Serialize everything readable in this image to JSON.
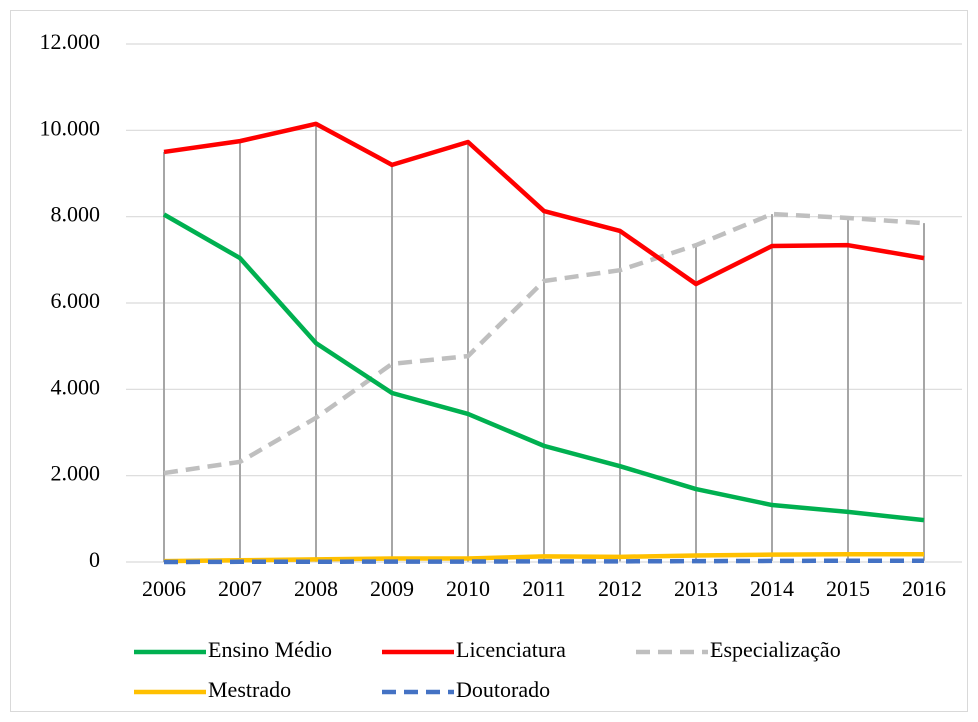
{
  "chart_data": {
    "type": "line",
    "categories": [
      "2006",
      "2007",
      "2008",
      "2009",
      "2010",
      "2011",
      "2012",
      "2013",
      "2014",
      "2015",
      "2016"
    ],
    "series": [
      {
        "name": "Ensino Médio",
        "color": "#00b050",
        "dash": false,
        "values": [
          8050,
          7040,
          5070,
          3915,
          3430,
          2690,
          2220,
          1690,
          1320,
          1160,
          970
        ]
      },
      {
        "name": "Licenciatura",
        "color": "#ff0000",
        "dash": false,
        "values": [
          9500,
          9750,
          10150,
          9200,
          9730,
          8130,
          7670,
          6440,
          7320,
          7340,
          7040
        ]
      },
      {
        "name": "Especialização",
        "color": "#bfbfbf",
        "dash": true,
        "values": [
          2060,
          2320,
          3340,
          4590,
          4770,
          6510,
          6760,
          7340,
          8060,
          7970,
          7850
        ]
      },
      {
        "name": "Mestrado",
        "color": "#ffc000",
        "dash": false,
        "values": [
          20,
          40,
          60,
          80,
          80,
          130,
          120,
          150,
          170,
          180,
          180
        ]
      },
      {
        "name": "Doutorado",
        "color": "#4472c4",
        "dash": true,
        "values": [
          0,
          5,
          5,
          10,
          10,
          15,
          15,
          20,
          25,
          30,
          30
        ]
      }
    ],
    "ylim": [
      0,
      12000
    ],
    "yticks": [
      0,
      {
        "value": 2000,
        "label": "2.000"
      },
      {
        "value": 4000,
        "label": "4.000"
      },
      {
        "value": 6000,
        "label": "6.000"
      },
      {
        "value": 8000,
        "label": "8.000"
      },
      {
        "value": 10000,
        "label": "10.000"
      },
      {
        "value": 12000,
        "label": "12.000"
      }
    ],
    "grid": true,
    "drop_lines": true,
    "legend": "bottom"
  }
}
